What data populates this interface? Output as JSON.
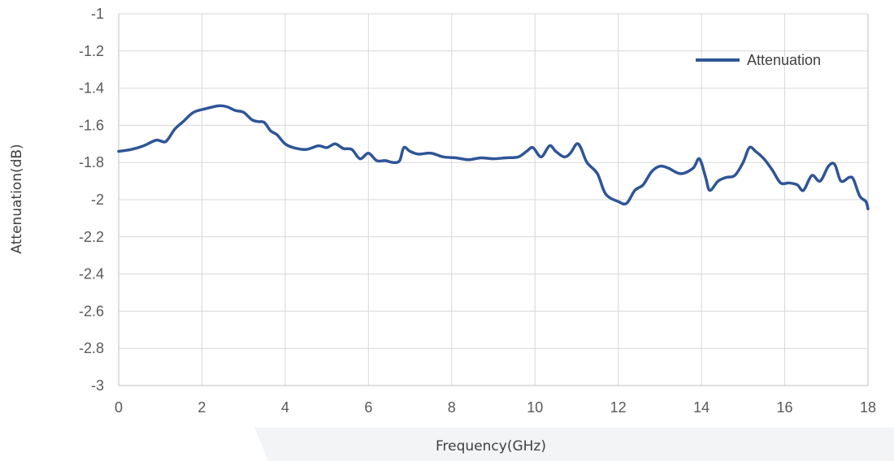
{
  "chart_data": {
    "type": "line",
    "title": "",
    "xlabel": "Frequency(GHz)",
    "ylabel": "Attenuation(dB)",
    "xlim": [
      0,
      18
    ],
    "ylim": [
      -3,
      -1
    ],
    "x_ticks": [
      "0",
      "2",
      "4",
      "6",
      "8",
      "10",
      "12",
      "14",
      "16",
      "18"
    ],
    "y_ticks": [
      "-1",
      "-1.2",
      "-1.4",
      "-1.6",
      "-1.8",
      "-2",
      "-2.2",
      "-2.4",
      "-2.6",
      "-2.8",
      "-3"
    ],
    "grid": true,
    "legend_position": "top-right",
    "series": [
      {
        "name": "Attenuation",
        "color": "#2e5597",
        "points": [
          [
            0.0,
            -1.74
          ],
          [
            0.3,
            -1.73
          ],
          [
            0.6,
            -1.71
          ],
          [
            0.9,
            -1.68
          ],
          [
            1.1,
            -1.69
          ],
          [
            1.2,
            -1.67
          ],
          [
            1.35,
            -1.62
          ],
          [
            1.55,
            -1.58
          ],
          [
            1.8,
            -1.53
          ],
          [
            2.1,
            -1.51
          ],
          [
            2.4,
            -1.495
          ],
          [
            2.6,
            -1.5
          ],
          [
            2.8,
            -1.52
          ],
          [
            3.0,
            -1.53
          ],
          [
            3.2,
            -1.57
          ],
          [
            3.35,
            -1.58
          ],
          [
            3.5,
            -1.585
          ],
          [
            3.65,
            -1.63
          ],
          [
            3.8,
            -1.65
          ],
          [
            4.0,
            -1.7
          ],
          [
            4.2,
            -1.72
          ],
          [
            4.5,
            -1.73
          ],
          [
            4.8,
            -1.71
          ],
          [
            5.0,
            -1.72
          ],
          [
            5.2,
            -1.7
          ],
          [
            5.4,
            -1.725
          ],
          [
            5.6,
            -1.73
          ],
          [
            5.8,
            -1.78
          ],
          [
            6.0,
            -1.75
          ],
          [
            6.2,
            -1.79
          ],
          [
            6.4,
            -1.79
          ],
          [
            6.6,
            -1.8
          ],
          [
            6.75,
            -1.79
          ],
          [
            6.85,
            -1.72
          ],
          [
            7.0,
            -1.74
          ],
          [
            7.2,
            -1.755
          ],
          [
            7.5,
            -1.75
          ],
          [
            7.8,
            -1.77
          ],
          [
            8.1,
            -1.775
          ],
          [
            8.4,
            -1.785
          ],
          [
            8.7,
            -1.775
          ],
          [
            9.0,
            -1.78
          ],
          [
            9.3,
            -1.775
          ],
          [
            9.6,
            -1.77
          ],
          [
            9.8,
            -1.74
          ],
          [
            9.95,
            -1.72
          ],
          [
            10.15,
            -1.77
          ],
          [
            10.35,
            -1.71
          ],
          [
            10.5,
            -1.74
          ],
          [
            10.7,
            -1.77
          ],
          [
            10.85,
            -1.75
          ],
          [
            11.0,
            -1.7
          ],
          [
            11.1,
            -1.72
          ],
          [
            11.25,
            -1.8
          ],
          [
            11.5,
            -1.86
          ],
          [
            11.7,
            -1.97
          ],
          [
            12.0,
            -2.01
          ],
          [
            12.2,
            -2.02
          ],
          [
            12.4,
            -1.95
          ],
          [
            12.6,
            -1.92
          ],
          [
            12.8,
            -1.85
          ],
          [
            13.0,
            -1.82
          ],
          [
            13.2,
            -1.83
          ],
          [
            13.5,
            -1.86
          ],
          [
            13.8,
            -1.83
          ],
          [
            13.95,
            -1.78
          ],
          [
            14.1,
            -1.88
          ],
          [
            14.2,
            -1.95
          ],
          [
            14.4,
            -1.9
          ],
          [
            14.6,
            -1.88
          ],
          [
            14.8,
            -1.87
          ],
          [
            15.0,
            -1.8
          ],
          [
            15.15,
            -1.72
          ],
          [
            15.3,
            -1.74
          ],
          [
            15.5,
            -1.78
          ],
          [
            15.7,
            -1.84
          ],
          [
            15.9,
            -1.91
          ],
          [
            16.1,
            -1.91
          ],
          [
            16.3,
            -1.92
          ],
          [
            16.45,
            -1.95
          ],
          [
            16.65,
            -1.87
          ],
          [
            16.85,
            -1.9
          ],
          [
            17.05,
            -1.82
          ],
          [
            17.2,
            -1.81
          ],
          [
            17.35,
            -1.9
          ],
          [
            17.55,
            -1.88
          ],
          [
            17.65,
            -1.89
          ],
          [
            17.8,
            -1.98
          ],
          [
            17.95,
            -2.01
          ],
          [
            18.0,
            -2.05
          ]
        ]
      }
    ]
  }
}
